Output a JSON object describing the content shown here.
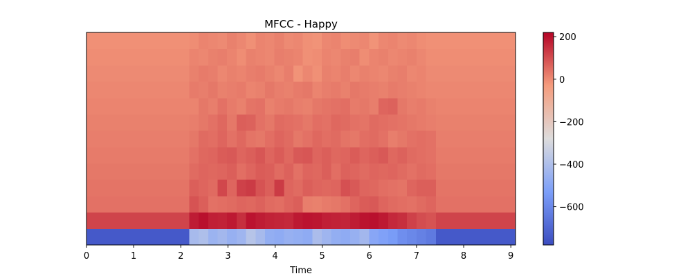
{
  "chart_data": {
    "type": "heatmap",
    "title": "MFCC - Happy",
    "xlabel": "Time",
    "ylabel": "",
    "xlim": [
      0,
      9.1
    ],
    "n_coefficients": 13,
    "x_ticks": [
      0,
      1,
      2,
      3,
      4,
      5,
      6,
      7,
      8,
      9
    ],
    "colorbar": {
      "colormap": "coolwarm",
      "range": [
        -780,
        220
      ],
      "ticks": [
        200,
        0,
        -200,
        -400,
        -600
      ]
    },
    "silence_level": [
      -740,
      115,
      40,
      35,
      30,
      25,
      20,
      15,
      10,
      5,
      0,
      -5,
      -10
    ],
    "speech_segment": {
      "start": 2.18,
      "end": 7.4
    },
    "speech_rows": [
      {
        "coefficient": 0,
        "values": [
          -420,
          -400,
          -450,
          -430,
          -460,
          -440,
          -380,
          -420,
          -470,
          -480,
          -460,
          -470,
          -480,
          -410,
          -440,
          -470,
          -480,
          -460,
          -430,
          -500,
          -520,
          -540,
          -580,
          -600,
          -620,
          -640
        ]
      },
      {
        "coefficient": 1,
        "values": [
          180,
          200,
          175,
          170,
          185,
          150,
          195,
          180,
          170,
          165,
          160,
          185,
          195,
          190,
          175,
          170,
          165,
          180,
          195,
          200,
          185,
          160,
          150,
          120,
          100,
          90
        ]
      },
      {
        "coefficient": 2,
        "values": [
          90,
          70,
          40,
          45,
          50,
          60,
          55,
          65,
          50,
          45,
          60,
          70,
          20,
          15,
          25,
          30,
          40,
          60,
          75,
          80,
          60,
          50,
          45,
          40,
          50,
          60
        ]
      },
      {
        "coefficient": 3,
        "values": [
          70,
          60,
          50,
          110,
          60,
          120,
          130,
          90,
          70,
          130,
          60,
          50,
          70,
          60,
          55,
          60,
          95,
          80,
          60,
          55,
          45,
          40,
          35,
          60,
          70,
          70
        ]
      },
      {
        "coefficient": 4,
        "values": [
          50,
          60,
          55,
          60,
          70,
          45,
          60,
          75,
          70,
          50,
          65,
          40,
          60,
          55,
          70,
          45,
          65,
          60,
          50,
          60,
          55,
          60,
          50,
          40,
          50,
          45
        ]
      },
      {
        "coefficient": 5,
        "values": [
          40,
          55,
          60,
          75,
          80,
          60,
          70,
          85,
          60,
          75,
          55,
          80,
          85,
          60,
          70,
          55,
          60,
          75,
          60,
          70,
          80,
          55,
          65,
          50,
          45,
          40
        ]
      },
      {
        "coefficient": 6,
        "values": [
          30,
          50,
          45,
          60,
          40,
          55,
          35,
          30,
          45,
          60,
          50,
          30,
          40,
          55,
          45,
          50,
          35,
          30,
          45,
          50,
          40,
          20,
          30,
          40,
          45,
          40
        ]
      },
      {
        "coefficient": 7,
        "values": [
          20,
          30,
          40,
          55,
          30,
          70,
          65,
          40,
          30,
          50,
          45,
          40,
          30,
          45,
          40,
          55,
          50,
          40,
          35,
          50,
          45,
          40,
          35,
          30,
          25,
          20
        ]
      },
      {
        "coefficient": 8,
        "values": [
          10,
          30,
          20,
          40,
          25,
          15,
          35,
          40,
          15,
          25,
          30,
          20,
          15,
          30,
          35,
          40,
          45,
          25,
          30,
          20,
          60,
          65,
          30,
          20,
          25,
          15
        ]
      },
      {
        "coefficient": 9,
        "values": [
          25,
          20,
          30,
          15,
          20,
          25,
          10,
          15,
          30,
          20,
          15,
          25,
          30,
          10,
          20,
          25,
          15,
          30,
          25,
          20,
          15,
          25,
          20,
          15,
          10,
          5
        ]
      },
      {
        "coefficient": 10,
        "values": [
          15,
          25,
          20,
          5,
          15,
          10,
          20,
          25,
          15,
          5,
          20,
          -15,
          5,
          -10,
          15,
          10,
          20,
          5,
          15,
          10,
          5,
          15,
          20,
          5,
          10,
          0
        ]
      },
      {
        "coefficient": 11,
        "values": [
          10,
          5,
          15,
          20,
          10,
          -5,
          15,
          10,
          5,
          20,
          15,
          10,
          -10,
          -5,
          10,
          5,
          15,
          20,
          -5,
          10,
          15,
          5,
          10,
          15,
          5,
          -5
        ]
      },
      {
        "coefficient": 12,
        "values": [
          -5,
          10,
          5,
          0,
          15,
          5,
          -10,
          10,
          5,
          15,
          0,
          5,
          -10,
          -15,
          5,
          10,
          -5,
          0,
          5,
          -15,
          5,
          10,
          0,
          5,
          -5,
          -10
        ]
      }
    ]
  }
}
